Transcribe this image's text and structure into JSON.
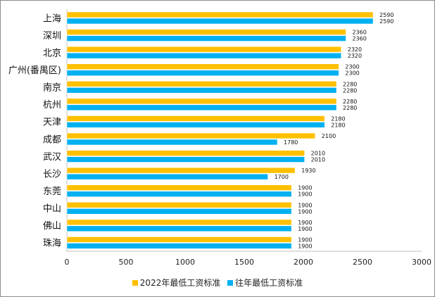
{
  "chart_data": {
    "type": "bar",
    "orientation": "horizontal",
    "categories": [
      "上海",
      "深圳",
      "北京",
      "广州(番禺区)",
      "南京",
      "杭州",
      "天津",
      "成都",
      "武汉",
      "长沙",
      "东莞",
      "中山",
      "佛山",
      "珠海"
    ],
    "series": [
      {
        "name": "2022年最低工资标准",
        "color": "#FFC000",
        "values": [
          2590,
          2360,
          2320,
          2300,
          2280,
          2280,
          2180,
          2100,
          2010,
          1930,
          1900,
          1900,
          1900,
          1900
        ]
      },
      {
        "name": "往年最低工资标准",
        "color": "#00B0F0",
        "values": [
          2590,
          2360,
          2320,
          2300,
          2280,
          2280,
          2180,
          1780,
          2010,
          1700,
          1900,
          1900,
          1900,
          1900
        ]
      }
    ],
    "xlim": [
      0,
      3000
    ],
    "xticks": [
      "0",
      "500",
      "1000",
      "1500",
      "2000",
      "2500",
      "3000"
    ],
    "data_labels": true,
    "grid": false,
    "legend": "bottom"
  }
}
